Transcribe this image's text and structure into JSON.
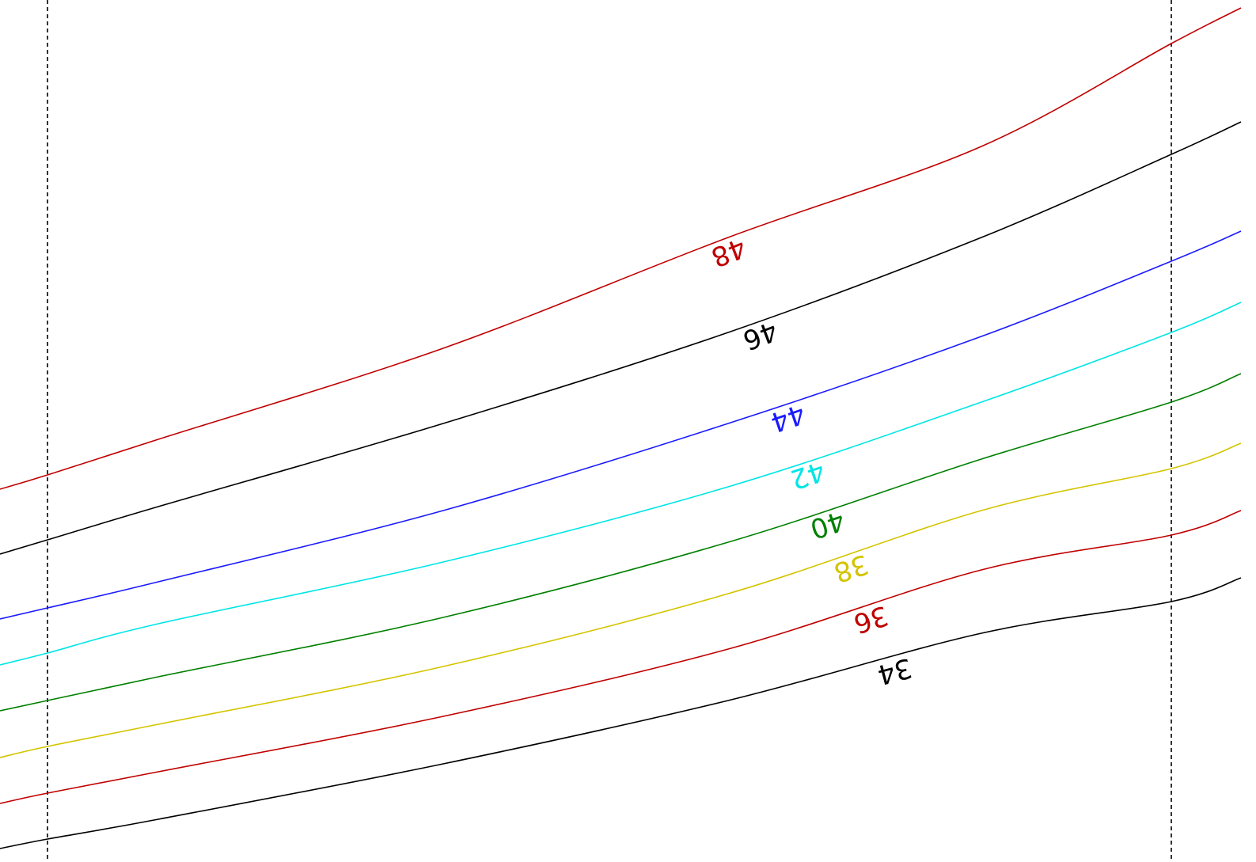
{
  "chart_data": {
    "type": "line",
    "x": [
      0,
      60,
      200,
      560,
      920,
      1240,
      1480,
      1568
    ],
    "grid": false,
    "guides_x": [
      60,
      1480
    ],
    "series": [
      {
        "name": "48",
        "label": "48",
        "color": "#c00000",
        "values": [
          618,
          600,
          555,
          440,
          300,
          185,
          55,
          10
        ],
        "label_at": 920
      },
      {
        "name": "46",
        "label": "46",
        "color": "#000000",
        "values": [
          700,
          682,
          640,
          535,
          420,
          300,
          195,
          154
        ],
        "label_at": 960
      },
      {
        "name": "44",
        "label": "44",
        "color": "#1a1aff",
        "values": [
          782,
          768,
          735,
          645,
          535,
          425,
          330,
          292
        ],
        "label_at": 995
      },
      {
        "name": "42",
        "label": "42",
        "color": "#00e5e5",
        "values": [
          840,
          825,
          788,
          710,
          615,
          508,
          420,
          382
        ],
        "label_at": 1020
      },
      {
        "name": "40",
        "label": "40",
        "color": "#008000",
        "values": [
          898,
          885,
          855,
          780,
          685,
          580,
          508,
          472
        ],
        "label_at": 1045
      },
      {
        "name": "38",
        "label": "38",
        "color": "#d4c400",
        "values": [
          957,
          943,
          915,
          842,
          750,
          645,
          592,
          560
        ],
        "label_at": 1075
      },
      {
        "name": "36",
        "label": "36",
        "color": "#c00000",
        "values": [
          1015,
          1002,
          975,
          905,
          820,
          720,
          676,
          645
        ],
        "label_at": 1100
      },
      {
        "name": "34",
        "label": "34",
        "color": "#000000",
        "values": [
          1072,
          1060,
          1035,
          965,
          885,
          800,
          760,
          730
        ],
        "label_at": 1130
      }
    ]
  }
}
